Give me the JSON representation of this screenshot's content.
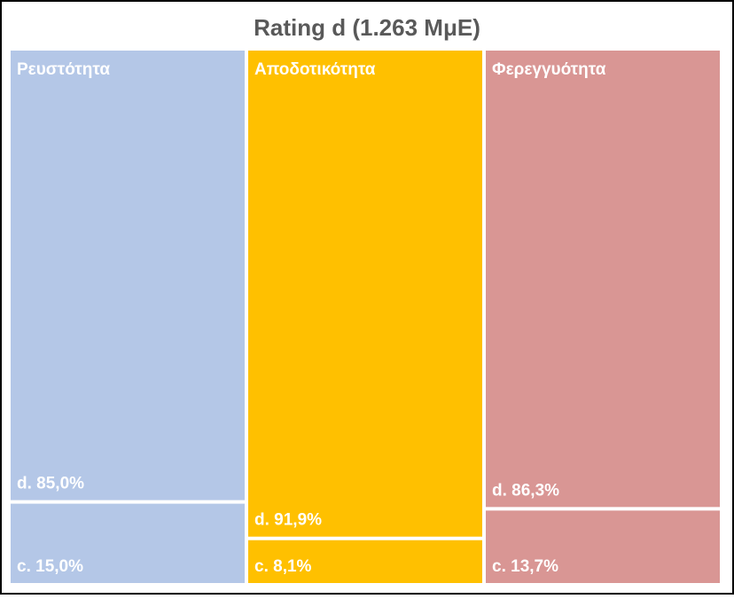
{
  "chart_data": {
    "type": "treemap",
    "title": "Rating d (1.263 MμE)",
    "groups": [
      {
        "name": "Ρευστότητα",
        "color": "#b4c7e7",
        "items": [
          {
            "label": "d. 85,0%",
            "value": 85.0
          },
          {
            "label": "c. 15,0%",
            "value": 15.0
          }
        ]
      },
      {
        "name": "Αποδοτικότητα",
        "color": "#ffc000",
        "items": [
          {
            "label": "d. 91,9%",
            "value": 91.9
          },
          {
            "label": "c. 8,1%",
            "value": 8.1
          }
        ]
      },
      {
        "name": "Φερεγγυότητα",
        "color": "#d99694",
        "items": [
          {
            "label": "d. 86,3%",
            "value": 86.3
          },
          {
            "label": "c. 13,7%",
            "value": 13.7
          }
        ]
      }
    ],
    "text_color": "#ffffff",
    "title_color": "#595959",
    "border_color": "#000000"
  }
}
